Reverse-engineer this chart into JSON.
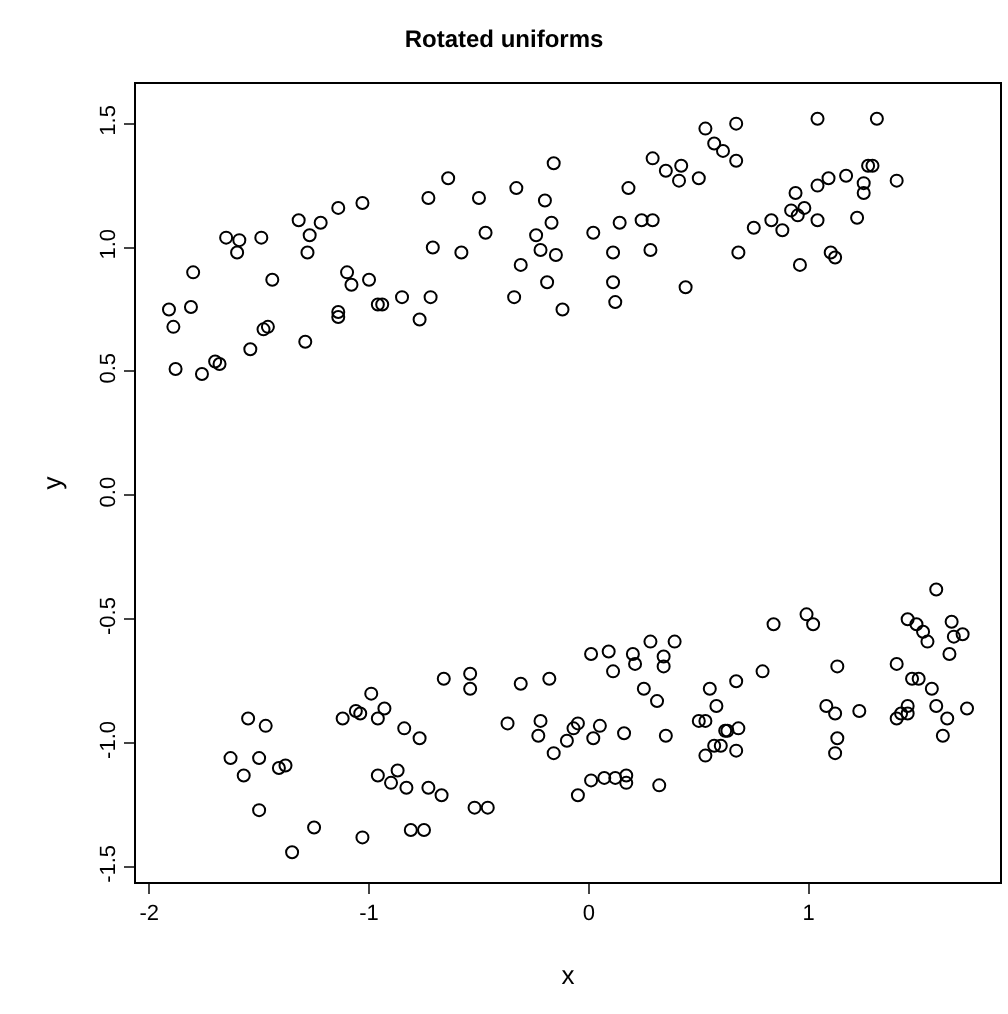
{
  "chart_data": {
    "type": "scatter",
    "title": "Rotated uniforms",
    "xlabel": "x",
    "ylabel": "y",
    "x": [
      -1.91,
      -1.89,
      -1.88,
      -1.81,
      -1.8,
      -1.76,
      -1.7,
      -1.68,
      -1.65,
      -1.59,
      -1.6,
      -1.54,
      -1.49,
      -1.48,
      -1.46,
      -1.44,
      -1.32,
      -1.27,
      -1.28,
      -1.22,
      -1.29,
      -1.14,
      -1.1,
      -1.08,
      -1.14,
      -1.14,
      -1.03,
      -1.0,
      -0.96,
      -0.94,
      -0.85,
      -0.77,
      -0.72,
      -0.73,
      -0.71,
      -0.64,
      -0.58,
      -0.5,
      -0.47,
      -0.33,
      -0.31,
      -0.34,
      -0.16,
      -0.2,
      -0.17,
      -0.24,
      -0.22,
      -0.15,
      -0.19,
      -0.12,
      0.02,
      0.11,
      0.11,
      0.12,
      0.14,
      0.18,
      0.24,
      0.29,
      0.28,
      0.29,
      0.35,
      0.42,
      0.41,
      0.44,
      0.5,
      0.53,
      0.57,
      0.61,
      0.67,
      0.67,
      0.68,
      0.75,
      0.83,
      0.88,
      0.92,
      0.94,
      0.95,
      0.98,
      0.96,
      1.04,
      1.04,
      1.04,
      1.09,
      1.1,
      1.12,
      1.17,
      1.22,
      1.25,
      1.25,
      1.27,
      1.29,
      1.31,
      1.4,
      -1.55,
      -1.47,
      -1.63,
      -1.57,
      -1.5,
      -1.41,
      -1.38,
      -1.5,
      -1.35,
      -1.25,
      -1.12,
      -1.06,
      -1.04,
      -0.99,
      -0.96,
      -0.93,
      -1.03,
      -0.96,
      -0.9,
      -0.87,
      -0.83,
      -0.84,
      -0.77,
      -0.81,
      -0.75,
      -0.73,
      -0.67,
      -0.66,
      -0.54,
      -0.54,
      -0.52,
      -0.46,
      -0.37,
      -0.31,
      -0.23,
      -0.22,
      -0.18,
      -0.16,
      -0.1,
      -0.07,
      -0.05,
      -0.05,
      0.01,
      0.02,
      0.05,
      0.01,
      0.09,
      0.11,
      0.07,
      0.12,
      0.17,
      0.17,
      0.16,
      0.2,
      0.21,
      0.25,
      0.28,
      0.31,
      0.34,
      0.34,
      0.32,
      0.35,
      0.39,
      0.5,
      0.53,
      0.53,
      0.55,
      0.58,
      0.57,
      0.6,
      0.62,
      0.63,
      0.68,
      0.67,
      0.67,
      0.79,
      0.84,
      0.99,
      1.02,
      1.13,
      1.08,
      1.12,
      1.13,
      1.12,
      1.23,
      1.4,
      1.4,
      1.42,
      1.45,
      1.45,
      1.47,
      1.5,
      1.45,
      1.49,
      1.52,
      1.54,
      1.56,
      1.58,
      1.58,
      1.63,
      1.61,
      1.65,
      1.66,
      1.7,
      1.64,
      1.72
    ],
    "values": [
      0.75,
      0.68,
      0.51,
      0.76,
      0.9,
      0.49,
      0.54,
      0.53,
      1.04,
      1.03,
      0.98,
      0.59,
      1.04,
      0.67,
      0.68,
      0.87,
      1.11,
      1.05,
      0.98,
      1.1,
      0.62,
      1.16,
      0.9,
      0.85,
      0.74,
      0.72,
      1.18,
      0.87,
      0.77,
      0.77,
      0.8,
      0.71,
      0.8,
      1.2,
      1.0,
      1.28,
      0.98,
      1.2,
      1.06,
      1.24,
      0.93,
      0.8,
      1.34,
      1.19,
      1.1,
      1.05,
      0.99,
      0.97,
      0.86,
      0.75,
      1.06,
      0.98,
      0.86,
      0.78,
      1.1,
      1.24,
      1.11,
      1.11,
      0.99,
      1.36,
      1.31,
      1.33,
      1.27,
      0.84,
      1.28,
      1.48,
      1.42,
      1.39,
      1.5,
      1.35,
      0.98,
      1.08,
      1.11,
      1.07,
      1.15,
      1.22,
      1.13,
      1.16,
      0.93,
      1.52,
      1.25,
      1.11,
      1.28,
      0.98,
      0.96,
      1.29,
      1.12,
      1.22,
      1.26,
      1.33,
      1.33,
      1.52,
      1.27,
      -0.9,
      -0.93,
      -1.06,
      -1.13,
      -1.06,
      -1.1,
      -1.09,
      -1.27,
      -1.44,
      -1.34,
      -0.9,
      -0.87,
      -0.88,
      -0.8,
      -0.9,
      -0.86,
      -1.38,
      -1.13,
      -1.16,
      -1.11,
      -1.18,
      -0.94,
      -0.98,
      -1.35,
      -1.35,
      -1.18,
      -1.21,
      -0.74,
      -0.78,
      -0.72,
      -1.26,
      -1.26,
      -0.92,
      -0.76,
      -0.97,
      -0.91,
      -0.74,
      -1.04,
      -0.99,
      -0.94,
      -0.92,
      -1.21,
      -1.15,
      -0.98,
      -0.93,
      -0.64,
      -0.63,
      -0.71,
      -1.14,
      -1.14,
      -1.13,
      -1.16,
      -0.96,
      -0.64,
      -0.68,
      -0.78,
      -0.59,
      -0.83,
      -0.65,
      -0.69,
      -1.17,
      -0.97,
      -0.59,
      -0.91,
      -0.91,
      -1.05,
      -0.78,
      -0.85,
      -1.01,
      -1.01,
      -0.95,
      -0.95,
      -0.94,
      -1.03,
      -0.75,
      -0.71,
      -0.52,
      -0.48,
      -0.52,
      -0.69,
      -0.85,
      -0.88,
      -0.98,
      -1.04,
      -0.87,
      -0.68,
      -0.9,
      -0.88,
      -0.88,
      -0.85,
      -0.74,
      -0.74,
      -0.5,
      -0.52,
      -0.55,
      -0.59,
      -0.78,
      -0.38,
      -0.85,
      -0.9,
      -0.97,
      -0.51,
      -0.57,
      -0.56,
      -0.64,
      -0.86
    ],
    "color": "#000000",
    "marker": "circle",
    "xlim": [
      -2.06,
      1.87
    ],
    "ylim": [
      -1.56,
      1.66
    ],
    "xticks": [
      -2,
      -1,
      0,
      1
    ],
    "yticks": [
      -1.5,
      {
        "value": -1,
        "label": "-1.0"
      },
      -0.5,
      {
        "value": 0,
        "label": "0.0"
      },
      0.5,
      {
        "value": 1,
        "label": "1.0"
      },
      1.5
    ]
  }
}
